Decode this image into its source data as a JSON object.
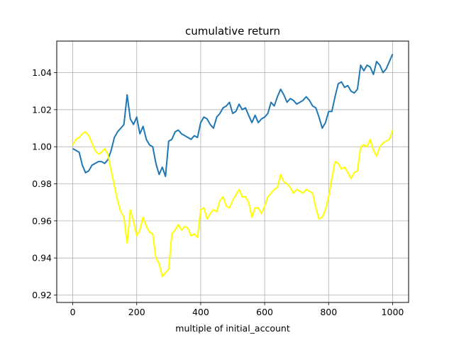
{
  "chart_data": {
    "type": "line",
    "title": "cumulative return",
    "xlabel": "multiple of initial_account",
    "ylabel": "",
    "xlim": [
      -50,
      1050
    ],
    "ylim": [
      0.916,
      1.057
    ],
    "xticks": [
      0,
      200,
      400,
      600,
      800,
      1000
    ],
    "xtick_labels": [
      "0",
      "200",
      "400",
      "600",
      "800",
      "1000"
    ],
    "yticks": [
      0.92,
      0.94,
      0.96,
      0.98,
      1.0,
      1.02,
      1.04
    ],
    "ytick_labels": [
      "0.92",
      "0.94",
      "0.96",
      "0.98",
      "1.00",
      "1.02",
      "1.04"
    ],
    "grid": true,
    "series": [
      {
        "color": "#1f77b4",
        "x": [
          0,
          10,
          20,
          30,
          40,
          50,
          60,
          70,
          80,
          90,
          100,
          110,
          120,
          130,
          140,
          150,
          160,
          170,
          180,
          190,
          200,
          210,
          220,
          230,
          240,
          250,
          260,
          270,
          280,
          290,
          300,
          310,
          320,
          330,
          340,
          350,
          360,
          370,
          380,
          390,
          400,
          410,
          420,
          430,
          440,
          450,
          460,
          470,
          480,
          490,
          500,
          510,
          520,
          530,
          540,
          550,
          560,
          570,
          580,
          590,
          600,
          610,
          620,
          630,
          640,
          650,
          660,
          670,
          680,
          690,
          700,
          710,
          720,
          730,
          740,
          750,
          760,
          770,
          780,
          790,
          800,
          810,
          820,
          830,
          840,
          850,
          860,
          870,
          880,
          890,
          900,
          910,
          920,
          930,
          940,
          950,
          960,
          970,
          980,
          990,
          1000
        ],
        "y": [
          0.999,
          0.998,
          0.997,
          0.99,
          0.986,
          0.987,
          0.99,
          0.991,
          0.992,
          0.992,
          0.991,
          0.993,
          0.998,
          1.005,
          1.008,
          1.01,
          1.012,
          1.028,
          1.015,
          1.012,
          1.016,
          1.007,
          1.011,
          1.004,
          1.001,
          1.0,
          0.991,
          0.985,
          0.989,
          0.984,
          1.003,
          1.004,
          1.008,
          1.009,
          1.007,
          1.006,
          1.005,
          1.004,
          1.006,
          1.005,
          1.013,
          1.016,
          1.015,
          1.012,
          1.01,
          1.016,
          1.018,
          1.021,
          1.022,
          1.024,
          1.018,
          1.019,
          1.023,
          1.02,
          1.021,
          1.017,
          1.013,
          1.017,
          1.013,
          1.015,
          1.016,
          1.018,
          1.024,
          1.022,
          1.027,
          1.031,
          1.028,
          1.024,
          1.026,
          1.025,
          1.023,
          1.024,
          1.025,
          1.027,
          1.025,
          1.022,
          1.021,
          1.016,
          1.01,
          1.013,
          1.019,
          1.019,
          1.027,
          1.034,
          1.035,
          1.032,
          1.033,
          1.03,
          1.029,
          1.031,
          1.044,
          1.041,
          1.044,
          1.043,
          1.039,
          1.046,
          1.044,
          1.04,
          1.042,
          1.046,
          1.05
        ]
      },
      {
        "color": "#ffff00",
        "x": [
          0,
          10,
          20,
          30,
          40,
          50,
          60,
          70,
          80,
          90,
          100,
          110,
          120,
          130,
          140,
          150,
          160,
          170,
          180,
          190,
          200,
          210,
          220,
          230,
          240,
          250,
          260,
          270,
          280,
          290,
          300,
          310,
          320,
          330,
          340,
          350,
          360,
          370,
          380,
          390,
          400,
          410,
          420,
          430,
          440,
          450,
          460,
          470,
          480,
          490,
          500,
          510,
          520,
          530,
          540,
          550,
          560,
          570,
          580,
          590,
          600,
          610,
          620,
          630,
          640,
          650,
          660,
          670,
          680,
          690,
          700,
          710,
          720,
          730,
          740,
          750,
          760,
          770,
          780,
          790,
          800,
          810,
          820,
          830,
          840,
          850,
          860,
          870,
          880,
          890,
          900,
          910,
          920,
          930,
          940,
          950,
          960,
          970,
          980,
          990,
          1000
        ],
        "y": [
          1.001,
          1.004,
          1.005,
          1.007,
          1.008,
          1.006,
          1.002,
          0.998,
          0.996,
          0.997,
          0.999,
          0.996,
          0.987,
          0.979,
          0.971,
          0.965,
          0.962,
          0.948,
          0.966,
          0.96,
          0.952,
          0.955,
          0.962,
          0.957,
          0.954,
          0.953,
          0.94,
          0.937,
          0.93,
          0.932,
          0.934,
          0.953,
          0.955,
          0.958,
          0.955,
          0.957,
          0.956,
          0.952,
          0.953,
          0.951,
          0.966,
          0.967,
          0.961,
          0.964,
          0.966,
          0.965,
          0.971,
          0.973,
          0.968,
          0.967,
          0.971,
          0.974,
          0.977,
          0.973,
          0.973,
          0.97,
          0.962,
          0.967,
          0.967,
          0.964,
          0.968,
          0.973,
          0.975,
          0.977,
          0.978,
          0.985,
          0.981,
          0.98,
          0.978,
          0.975,
          0.977,
          0.976,
          0.975,
          0.977,
          0.976,
          0.975,
          0.967,
          0.961,
          0.962,
          0.966,
          0.973,
          0.983,
          0.992,
          0.991,
          0.988,
          0.989,
          0.986,
          0.983,
          0.986,
          0.987,
          1.0,
          1.001,
          1.0,
          1.004,
          0.998,
          0.995,
          1.0,
          1.002,
          1.003,
          1.004,
          1.009
        ]
      }
    ]
  }
}
